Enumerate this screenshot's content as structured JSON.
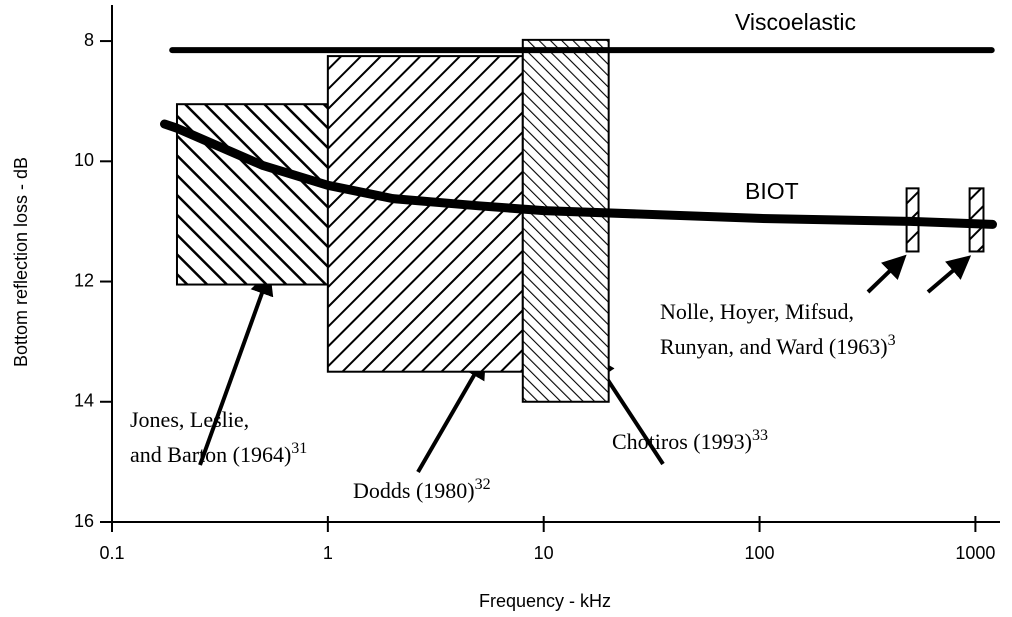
{
  "chart_data": {
    "type": "box-line",
    "x_label": "Frequency - kHz",
    "y_label": "Bottom reflection loss - dB",
    "x_log": true,
    "y_inverted": true,
    "xlim": [
      0.1,
      1300
    ],
    "ylim": [
      7.4,
      16
    ],
    "xticks": [
      0.1,
      1,
      10,
      100,
      1000
    ],
    "yticks": [
      8,
      10,
      12,
      14,
      16
    ],
    "color": "#000000",
    "series": [
      {
        "name": "Viscoelastic",
        "x": [
          0.19,
          1190
        ],
        "values": [
          8.15,
          8.15
        ]
      },
      {
        "name": "BIOT",
        "x": [
          0.175,
          0.2,
          0.5,
          1,
          2,
          5,
          10,
          100,
          500,
          1200
        ],
        "values": [
          9.38,
          9.45,
          10.07,
          10.4,
          10.62,
          10.74,
          10.82,
          10.95,
          11.0,
          11.05
        ]
      }
    ],
    "boxes": [
      {
        "x": [
          0.2,
          3.2
        ],
        "y": [
          9.05,
          12.05
        ],
        "hatch": "backslash"
      },
      {
        "x": [
          1,
          8
        ],
        "y": [
          8.25,
          13.5
        ],
        "hatch": "slash"
      },
      {
        "x": [
          8,
          20
        ],
        "y": [
          7.98,
          14
        ],
        "hatch": "fine-backslash"
      },
      {
        "x": [
          480,
          545
        ],
        "y": [
          10.45,
          11.5
        ],
        "hatch": "slash"
      },
      {
        "x": [
          940,
          1090
        ],
        "y": [
          10.45,
          11.5
        ],
        "hatch": "slash"
      }
    ],
    "annotations": [
      {
        "lines": [
          "Jones, Leslie,",
          "and Barton (1964)"
        ],
        "sup": "31"
      },
      {
        "lines": [
          "Dodds (1980)"
        ],
        "sup": "32"
      },
      {
        "lines": [
          "Chotiros (1993)"
        ],
        "sup": "33"
      },
      {
        "lines": [
          "Nolle, Hoyer, Mifsud,",
          "Runyan, and Ward (1963)"
        ],
        "sup": "3"
      }
    ]
  }
}
